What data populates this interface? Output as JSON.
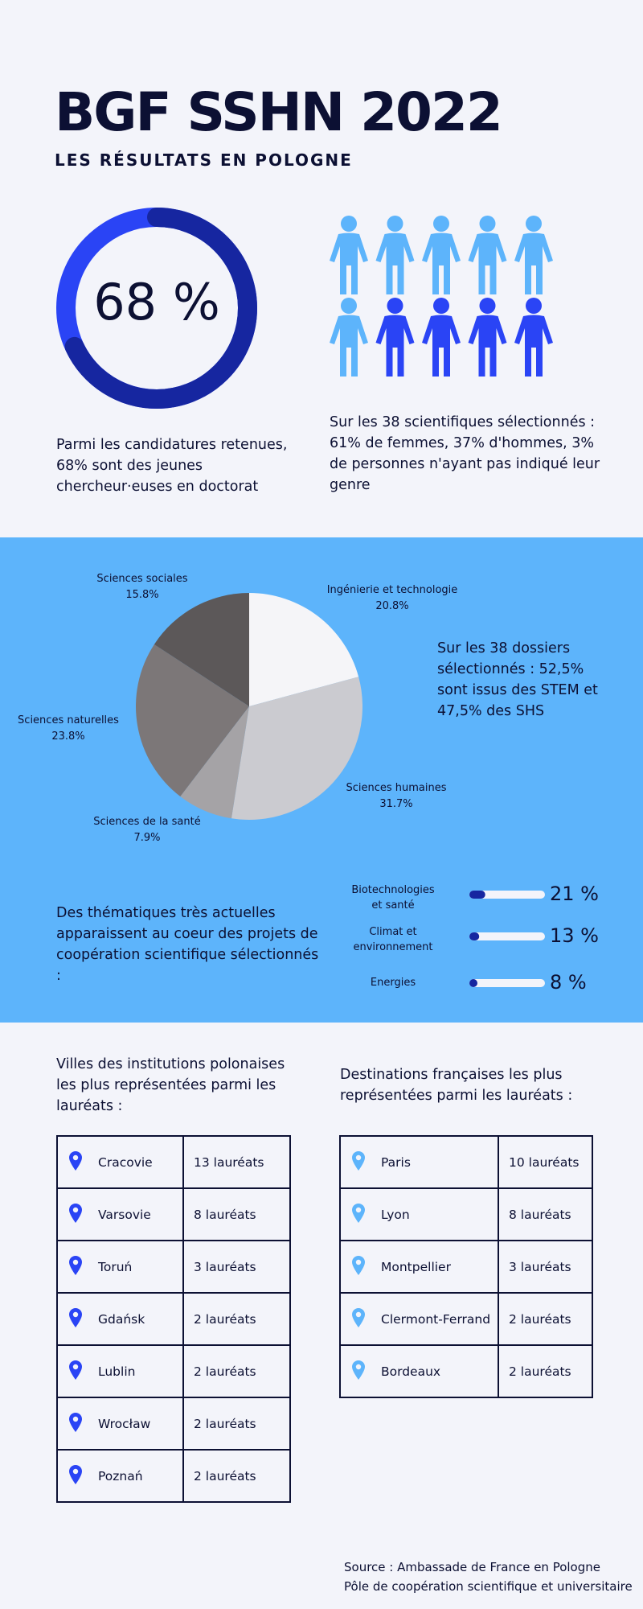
{
  "header": {
    "title": "BGF SSHN 2022",
    "subtitle": "LES RÉSULTATS EN POLOGNE"
  },
  "doctorate": {
    "value": 68,
    "label": "68 %",
    "text": "Parmi les candidatures retenues, 68% sont des jeunes chercheur·euses en doctorat",
    "colors": {
      "track": "#2a44f5",
      "fill": "#1626a0"
    }
  },
  "gender": {
    "text": "Sur les 38 scientifiques sélectionnés : 61% de femmes, 37% d'hommes, 3% de personnes n'ayant pas indiqué leur genre",
    "light_count": 6,
    "dark_count": 4,
    "colors": {
      "light": "#5db4fb",
      "dark": "#2a44f5"
    }
  },
  "chart_data": [
    {
      "type": "pie",
      "categories": [
        "Ingénierie et technologie",
        "Sciences humaines",
        "Sciences de la santé",
        "Sciences naturelles",
        "Sciences sociales"
      ],
      "values": [
        20.8,
        31.7,
        7.9,
        23.8,
        15.8
      ],
      "value_labels": [
        "20.8%",
        "31.7%",
        "7.9%",
        "23.8%",
        "15.8%"
      ],
      "colors": [
        "#f5f5f8",
        "#cbcbd0",
        "#a5a3a6",
        "#7c7778",
        "#5c5859"
      ]
    },
    {
      "type": "bar",
      "orientation": "horizontal",
      "categories": [
        "Biotechnologies et santé",
        "Climat et environnement",
        "Energies"
      ],
      "values": [
        21,
        13,
        8
      ],
      "value_labels": [
        "21 %",
        "13 %",
        "8 %"
      ],
      "xlim": [
        0,
        100
      ],
      "colors": {
        "track": "#f3f4fa",
        "fill": "#1626a0"
      }
    }
  ],
  "pie_text": "Sur les 38 dossiers sélectionnés : 52,5% sont issus des STEM et 47,5% des SHS",
  "themes_text": "Des thématiques très actuelles apparaissent au coeur des projets de coopération scientifique sélectionnés :",
  "themes_labels": [
    [
      "Biotechnologies",
      "et santé"
    ],
    [
      "Climat et",
      "environnement"
    ],
    [
      "Energies"
    ]
  ],
  "polish_cities": {
    "heading": "Villes des institutions polonaises les plus représentées parmi les lauréats :",
    "pin_color": "#2a44f5",
    "rows": [
      {
        "city": "Cracovie",
        "count": "13 lauréats"
      },
      {
        "city": "Varsovie",
        "count": "8 lauréats"
      },
      {
        "city": "Toruń",
        "count": "3 lauréats"
      },
      {
        "city": "Gdańsk",
        "count": "2 lauréats"
      },
      {
        "city": "Lublin",
        "count": "2 lauréats"
      },
      {
        "city": "Wrocław",
        "count": "2 lauréats"
      },
      {
        "city": "Poznań",
        "count": "2 lauréats"
      }
    ]
  },
  "french_cities": {
    "heading": "Destinations françaises les plus représentées parmi les lauréats :",
    "pin_color": "#5db4fb",
    "rows": [
      {
        "city": "Paris",
        "count": "10 lauréats"
      },
      {
        "city": "Lyon",
        "count": "8 lauréats"
      },
      {
        "city": "Montpellier",
        "count": "3 lauréats"
      },
      {
        "city": "Clermont-Ferrand",
        "count": "2 lauréats"
      },
      {
        "city": "Bordeaux",
        "count": "2 lauréats"
      }
    ]
  },
  "source": {
    "line1": "Source : Ambassade de France en Pologne",
    "line2": "Pôle de coopération scientifique et universitaire"
  }
}
